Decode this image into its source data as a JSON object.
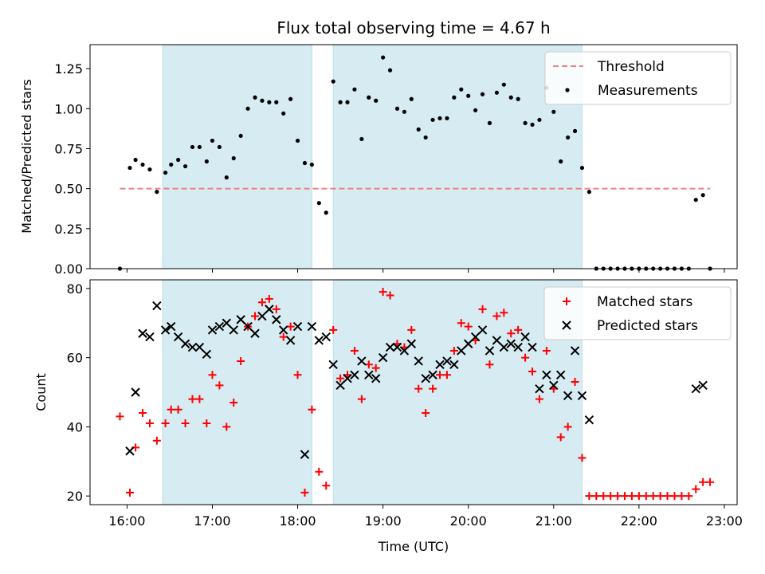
{
  "chart_data": [
    {
      "type": "scatter",
      "title": "Flux total observing time = 4.67 h",
      "ylabel": "Matched/Predicted stars",
      "xlabel": "",
      "xlim": [
        "15:34",
        "23:09"
      ],
      "ylim": [
        0,
        1.4
      ],
      "y_ticks": [
        "0.00",
        "0.25",
        "0.50",
        "0.75",
        "1.00",
        "1.25"
      ],
      "x_ticks": [
        "16:00",
        "17:00",
        "18:00",
        "19:00",
        "20:00",
        "21:00",
        "22:00",
        "23:00"
      ],
      "shaded_intervals": [
        [
          "16:25",
          "18:10"
        ],
        [
          "18:25",
          "21:20"
        ]
      ],
      "shade_color": "#add8e6",
      "legend_position": "top-right",
      "threshold": {
        "name": "Threshold",
        "value": 0.5,
        "x_range": [
          "15:55",
          "22:50"
        ],
        "color": "#f08080"
      },
      "series": [
        {
          "name": "Measurements",
          "color": "#000000",
          "marker": "dot",
          "points": [
            [
              "15:55",
              0.0
            ],
            [
              "16:02",
              0.63
            ],
            [
              "16:06",
              0.68
            ],
            [
              "16:11",
              0.65
            ],
            [
              "16:16",
              0.62
            ],
            [
              "16:21",
              0.48
            ],
            [
              "16:27",
              0.6
            ],
            [
              "16:31",
              0.65
            ],
            [
              "16:36",
              0.68
            ],
            [
              "16:41",
              0.64
            ],
            [
              "16:46",
              0.76
            ],
            [
              "16:51",
              0.76
            ],
            [
              "16:56",
              0.67
            ],
            [
              "17:00",
              0.8
            ],
            [
              "17:05",
              0.76
            ],
            [
              "17:10",
              0.57
            ],
            [
              "17:15",
              0.69
            ],
            [
              "17:20",
              0.83
            ],
            [
              "17:25",
              1.0
            ],
            [
              "17:30",
              1.07
            ],
            [
              "17:35",
              1.05
            ],
            [
              "17:40",
              1.04
            ],
            [
              "17:45",
              1.04
            ],
            [
              "17:50",
              0.97
            ],
            [
              "17:55",
              1.06
            ],
            [
              "18:00",
              0.8
            ],
            [
              "18:05",
              0.66
            ],
            [
              "18:10",
              0.65
            ],
            [
              "18:15",
              0.41
            ],
            [
              "18:20",
              0.35
            ],
            [
              "18:25",
              1.17
            ],
            [
              "18:30",
              1.04
            ],
            [
              "18:35",
              1.04
            ],
            [
              "18:40",
              1.12
            ],
            [
              "18:45",
              0.81
            ],
            [
              "18:50",
              1.07
            ],
            [
              "18:55",
              1.05
            ],
            [
              "19:00",
              1.32
            ],
            [
              "19:05",
              1.24
            ],
            [
              "19:10",
              1.0
            ],
            [
              "19:15",
              0.98
            ],
            [
              "19:20",
              1.06
            ],
            [
              "19:25",
              0.87
            ],
            [
              "19:30",
              0.82
            ],
            [
              "19:35",
              0.93
            ],
            [
              "19:40",
              0.94
            ],
            [
              "19:45",
              0.94
            ],
            [
              "19:50",
              1.07
            ],
            [
              "19:55",
              1.12
            ],
            [
              "20:00",
              1.08
            ],
            [
              "20:05",
              0.99
            ],
            [
              "20:10",
              1.09
            ],
            [
              "20:15",
              0.91
            ],
            [
              "20:20",
              1.1
            ],
            [
              "20:25",
              1.15
            ],
            [
              "20:30",
              1.07
            ],
            [
              "20:35",
              1.06
            ],
            [
              "20:40",
              0.91
            ],
            [
              "20:45",
              0.9
            ],
            [
              "20:50",
              0.93
            ],
            [
              "20:55",
              1.13
            ],
            [
              "21:00",
              0.98
            ],
            [
              "21:05",
              0.67
            ],
            [
              "21:10",
              0.82
            ],
            [
              "21:15",
              0.86
            ],
            [
              "21:20",
              0.63
            ],
            [
              "21:25",
              0.48
            ],
            [
              "21:30",
              0.0
            ],
            [
              "21:35",
              0.0
            ],
            [
              "21:40",
              0.0
            ],
            [
              "21:45",
              0.0
            ],
            [
              "21:50",
              0.0
            ],
            [
              "21:55",
              0.0
            ],
            [
              "22:00",
              0.0
            ],
            [
              "22:05",
              0.0
            ],
            [
              "22:10",
              0.0
            ],
            [
              "22:15",
              0.0
            ],
            [
              "22:20",
              0.0
            ],
            [
              "22:25",
              0.0
            ],
            [
              "22:30",
              0.0
            ],
            [
              "22:35",
              0.0
            ],
            [
              "22:40",
              0.43
            ],
            [
              "22:45",
              0.46
            ],
            [
              "22:50",
              0.0
            ]
          ]
        }
      ]
    },
    {
      "type": "scatter",
      "title": "",
      "ylabel": "Count",
      "xlabel": "Time (UTC)",
      "xlim": [
        "15:34",
        "23:09"
      ],
      "ylim": [
        17.5,
        82.5
      ],
      "y_ticks": [
        "20",
        "40",
        "60",
        "80"
      ],
      "x_ticks": [
        "16:00",
        "17:00",
        "18:00",
        "19:00",
        "20:00",
        "21:00",
        "22:00",
        "23:00"
      ],
      "shaded_intervals": [
        [
          "16:25",
          "18:10"
        ],
        [
          "18:25",
          "21:20"
        ]
      ],
      "shade_color": "#add8e6",
      "legend_position": "top-right",
      "series": [
        {
          "name": "Matched stars",
          "color": "#ff0000",
          "marker": "plus",
          "points": [
            [
              "15:55",
              43
            ],
            [
              "16:02",
              21
            ],
            [
              "16:06",
              34
            ],
            [
              "16:11",
              44
            ],
            [
              "16:16",
              41
            ],
            [
              "16:21",
              36
            ],
            [
              "16:27",
              41
            ],
            [
              "16:31",
              45
            ],
            [
              "16:36",
              45
            ],
            [
              "16:41",
              41
            ],
            [
              "16:46",
              48
            ],
            [
              "16:51",
              48
            ],
            [
              "16:56",
              41
            ],
            [
              "17:00",
              55
            ],
            [
              "17:05",
              52
            ],
            [
              "17:10",
              40
            ],
            [
              "17:15",
              47
            ],
            [
              "17:20",
              59
            ],
            [
              "17:25",
              69
            ],
            [
              "17:30",
              72
            ],
            [
              "17:35",
              76
            ],
            [
              "17:40",
              77
            ],
            [
              "17:45",
              74
            ],
            [
              "17:50",
              66
            ],
            [
              "17:55",
              69
            ],
            [
              "18:00",
              55
            ],
            [
              "18:05",
              21
            ],
            [
              "18:10",
              45
            ],
            [
              "18:15",
              27
            ],
            [
              "18:20",
              23
            ],
            [
              "18:25",
              68
            ],
            [
              "18:30",
              54
            ],
            [
              "18:35",
              55
            ],
            [
              "18:40",
              62
            ],
            [
              "18:45",
              48
            ],
            [
              "18:50",
              58
            ],
            [
              "18:55",
              57
            ],
            [
              "19:00",
              79
            ],
            [
              "19:05",
              78
            ],
            [
              "19:10",
              64
            ],
            [
              "19:15",
              63
            ],
            [
              "19:20",
              68
            ],
            [
              "19:25",
              51
            ],
            [
              "19:30",
              44
            ],
            [
              "19:35",
              51
            ],
            [
              "19:40",
              55
            ],
            [
              "19:45",
              55
            ],
            [
              "19:50",
              62
            ],
            [
              "19:55",
              70
            ],
            [
              "20:00",
              69
            ],
            [
              "20:05",
              65
            ],
            [
              "20:10",
              74
            ],
            [
              "20:15",
              58
            ],
            [
              "20:20",
              72
            ],
            [
              "20:25",
              73
            ],
            [
              "20:30",
              67
            ],
            [
              "20:35",
              68
            ],
            [
              "20:40",
              60
            ],
            [
              "20:45",
              56
            ],
            [
              "20:50",
              48
            ],
            [
              "20:55",
              62
            ],
            [
              "21:00",
              51
            ],
            [
              "21:05",
              37
            ],
            [
              "21:10",
              40
            ],
            [
              "21:15",
              53
            ],
            [
              "21:20",
              31
            ],
            [
              "21:25",
              20
            ],
            [
              "21:30",
              20
            ],
            [
              "21:35",
              20
            ],
            [
              "21:40",
              20
            ],
            [
              "21:45",
              20
            ],
            [
              "21:50",
              20
            ],
            [
              "21:55",
              20
            ],
            [
              "22:00",
              20
            ],
            [
              "22:05",
              20
            ],
            [
              "22:10",
              20
            ],
            [
              "22:15",
              20
            ],
            [
              "22:20",
              20
            ],
            [
              "22:25",
              20
            ],
            [
              "22:30",
              20
            ],
            [
              "22:35",
              20
            ],
            [
              "22:40",
              22
            ],
            [
              "22:45",
              24
            ],
            [
              "22:50",
              24
            ]
          ]
        },
        {
          "name": "Predicted stars",
          "color": "#000000",
          "marker": "x",
          "points": [
            [
              "16:02",
              33
            ],
            [
              "16:06",
              50
            ],
            [
              "16:11",
              67
            ],
            [
              "16:16",
              66
            ],
            [
              "16:21",
              75
            ],
            [
              "16:27",
              68
            ],
            [
              "16:31",
              69
            ],
            [
              "16:36",
              66
            ],
            [
              "16:41",
              64
            ],
            [
              "16:46",
              63
            ],
            [
              "16:51",
              63
            ],
            [
              "16:56",
              61
            ],
            [
              "17:00",
              68
            ],
            [
              "17:05",
              69
            ],
            [
              "17:10",
              70
            ],
            [
              "17:15",
              68
            ],
            [
              "17:20",
              71
            ],
            [
              "17:25",
              69
            ],
            [
              "17:30",
              67
            ],
            [
              "17:35",
              72
            ],
            [
              "17:40",
              74
            ],
            [
              "17:45",
              71
            ],
            [
              "17:50",
              68
            ],
            [
              "17:55",
              65
            ],
            [
              "18:00",
              69
            ],
            [
              "18:05",
              32
            ],
            [
              "18:10",
              69
            ],
            [
              "18:15",
              65
            ],
            [
              "18:20",
              66
            ],
            [
              "18:25",
              58
            ],
            [
              "18:30",
              52
            ],
            [
              "18:35",
              54
            ],
            [
              "18:40",
              55
            ],
            [
              "18:45",
              59
            ],
            [
              "18:50",
              55
            ],
            [
              "18:55",
              54
            ],
            [
              "19:00",
              60
            ],
            [
              "19:05",
              63
            ],
            [
              "19:10",
              63
            ],
            [
              "19:15",
              62
            ],
            [
              "19:20",
              64
            ],
            [
              "19:25",
              59
            ],
            [
              "19:30",
              54
            ],
            [
              "19:35",
              55
            ],
            [
              "19:40",
              58
            ],
            [
              "19:45",
              59
            ],
            [
              "19:50",
              58
            ],
            [
              "19:55",
              62
            ],
            [
              "20:00",
              64
            ],
            [
              "20:05",
              66
            ],
            [
              "20:10",
              68
            ],
            [
              "20:15",
              62
            ],
            [
              "20:20",
              65
            ],
            [
              "20:25",
              63
            ],
            [
              "20:30",
              64
            ],
            [
              "20:35",
              63
            ],
            [
              "20:40",
              66
            ],
            [
              "20:45",
              63
            ],
            [
              "20:50",
              51
            ],
            [
              "20:55",
              55
            ],
            [
              "21:00",
              52
            ],
            [
              "21:05",
              55
            ],
            [
              "21:10",
              49
            ],
            [
              "21:15",
              62
            ],
            [
              "21:20",
              49
            ],
            [
              "21:25",
              42
            ],
            [
              "22:40",
              51
            ],
            [
              "22:45",
              52
            ]
          ]
        }
      ]
    }
  ]
}
